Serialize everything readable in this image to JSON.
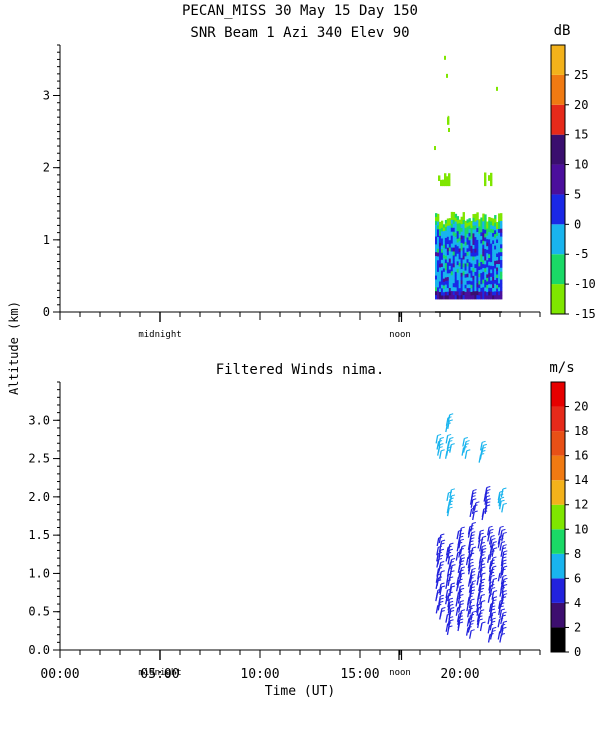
{
  "header": {
    "title": "PECAN_MISS  30 May 15 Day 150",
    "subtitle": "SNR Beam 1 Azi 340 Elev 90"
  },
  "shared_ylabel": "Altitude (km)",
  "markers": {
    "midnight": "midnight",
    "noon": "noon"
  },
  "chart_data": [
    {
      "type": "heatmap",
      "title": "SNR Beam 1 Azi 340 Elev 90",
      "xlabel": "",
      "ylabel": "Altitude (km)",
      "x_unit": "hours UT",
      "xlim": [
        0,
        24
      ],
      "ylim": [
        0,
        3.7
      ],
      "yticks": [
        0,
        1,
        2,
        3
      ],
      "colorbar": {
        "unit": "dB",
        "ticks": [
          -15,
          -10,
          -5,
          0,
          5,
          10,
          15,
          20,
          25
        ],
        "bins": [
          {
            "from": -15,
            "to": -10,
            "color": "#7fe600"
          },
          {
            "from": -10,
            "to": -5,
            "color": "#1ad966"
          },
          {
            "from": -5,
            "to": 0,
            "color": "#19b4ee"
          },
          {
            "from": 0,
            "to": 5,
            "color": "#1a28e6"
          },
          {
            "from": 5,
            "to": 10,
            "color": "#4b0f9c"
          },
          {
            "from": 10,
            "to": 15,
            "color": "#3a0f6e"
          },
          {
            "from": 15,
            "to": 20,
            "color": "#e62a1a"
          },
          {
            "from": 20,
            "to": 25,
            "color": "#f07a12"
          },
          {
            "from": 25,
            "to": 30,
            "color": "#f3b21b"
          }
        ]
      },
      "echo_regions": [
        {
          "x_start": 18.75,
          "x_end": 22.1,
          "alt_bottom": 0.18,
          "alt_top": 1.3,
          "dominant_db": -3
        },
        {
          "x_start": 18.8,
          "x_end": 19.5,
          "alt_bottom": 1.75,
          "alt_top": 1.9,
          "dominant_db": -13
        },
        {
          "x_start": 21.2,
          "x_end": 21.6,
          "alt_bottom": 1.75,
          "alt_top": 1.92,
          "dominant_db": -13
        },
        {
          "x_start": 19.35,
          "x_end": 19.45,
          "alt_bottom": 2.6,
          "alt_top": 2.72,
          "dominant_db": -13
        }
      ],
      "sampling_period": {
        "x_start": 18.75,
        "x_end": 22.1
      }
    },
    {
      "type": "scatter",
      "title": "Filtered Winds nima.",
      "xlabel": "Time (UT)",
      "ylabel": "Altitude (km)",
      "xlim": [
        0,
        24
      ],
      "ylim": [
        0,
        3.5
      ],
      "yticks": [
        "0.0",
        "0.5",
        "1.0",
        "1.5",
        "2.0",
        "2.5",
        "3.0"
      ],
      "xticks": [
        "00:00",
        "05:00",
        "10:00",
        "15:00",
        "20:00"
      ],
      "colorbar": {
        "unit": "m/s",
        "ticks": [
          0,
          2,
          4,
          6,
          8,
          10,
          12,
          14,
          16,
          18,
          20
        ],
        "bins": [
          {
            "from": 0,
            "to": 2,
            "color": "#000000"
          },
          {
            "from": 2,
            "to": 4,
            "color": "#3d0e6f"
          },
          {
            "from": 4,
            "to": 6,
            "color": "#2222dd"
          },
          {
            "from": 6,
            "to": 8,
            "color": "#19b4ee"
          },
          {
            "from": 8,
            "to": 10,
            "color": "#1ad966"
          },
          {
            "from": 10,
            "to": 12,
            "color": "#7fe600"
          },
          {
            "from": 12,
            "to": 14,
            "color": "#f3b21b"
          },
          {
            "from": 14,
            "to": 16,
            "color": "#f07a12"
          },
          {
            "from": 16,
            "to": 18,
            "color": "#e85016"
          },
          {
            "from": 18,
            "to": 20,
            "color": "#e62a1a"
          },
          {
            "from": 20,
            "to": 22,
            "color": "#e60000"
          }
        ]
      },
      "wind_profiles": [
        {
          "time": 18.9,
          "alt_bottom": 0.45,
          "alt_top": 1.45,
          "speed_ms": 5
        },
        {
          "time": 19.4,
          "alt_bottom": 0.25,
          "alt_top": 1.35,
          "speed_ms": 5
        },
        {
          "time": 19.9,
          "alt_bottom": 0.3,
          "alt_top": 1.55,
          "speed_ms": 4
        },
        {
          "time": 20.45,
          "alt_bottom": 0.2,
          "alt_top": 1.6,
          "speed_ms": 4
        },
        {
          "time": 20.95,
          "alt_bottom": 0.3,
          "alt_top": 1.5,
          "speed_ms": 4
        },
        {
          "time": 21.5,
          "alt_bottom": 0.15,
          "alt_top": 1.55,
          "speed_ms": 4
        },
        {
          "time": 22.0,
          "alt_bottom": 0.15,
          "alt_top": 1.55,
          "speed_ms": 4
        },
        {
          "time": 19.4,
          "alt_bottom": 1.8,
          "alt_top": 2.05,
          "speed_ms": 6
        },
        {
          "time": 20.6,
          "alt_bottom": 1.75,
          "alt_top": 2.05,
          "speed_ms": 4
        },
        {
          "time": 21.2,
          "alt_bottom": 1.75,
          "alt_top": 2.1,
          "speed_ms": 5
        },
        {
          "time": 22.0,
          "alt_bottom": 1.85,
          "alt_top": 2.05,
          "speed_ms": 6
        },
        {
          "time": 18.9,
          "alt_bottom": 2.55,
          "alt_top": 2.75,
          "speed_ms": 7
        },
        {
          "time": 19.4,
          "alt_bottom": 2.55,
          "alt_top": 2.75,
          "speed_ms": 7
        },
        {
          "time": 20.2,
          "alt_bottom": 2.55,
          "alt_top": 2.72,
          "speed_ms": 7
        },
        {
          "time": 21.05,
          "alt_bottom": 2.5,
          "alt_top": 2.68,
          "speed_ms": 7
        },
        {
          "time": 19.4,
          "alt_bottom": 2.9,
          "alt_top": 3.05,
          "speed_ms": 7
        }
      ]
    }
  ]
}
